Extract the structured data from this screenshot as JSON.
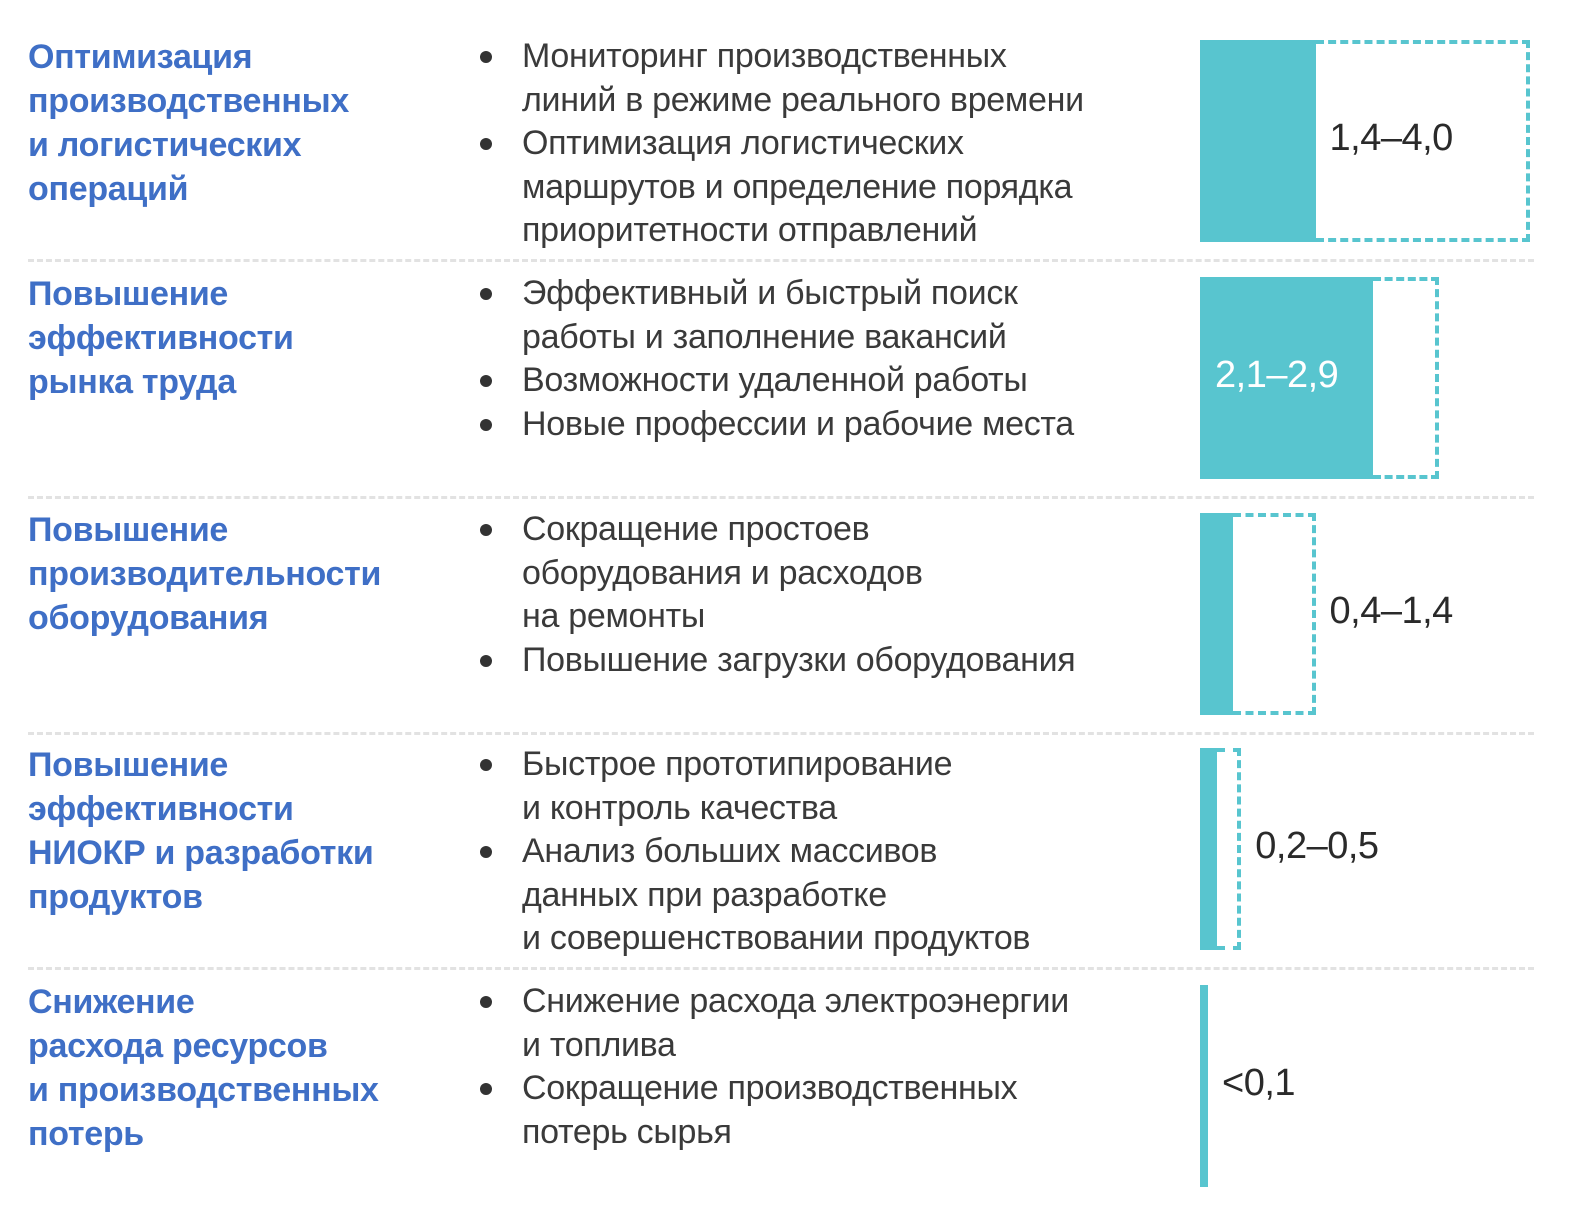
{
  "chart_data": {
    "type": "bar",
    "orientation": "horizontal-range",
    "bar_color": "#58c5cf",
    "title_color": "#3f6fc6",
    "categories": [
      {
        "title_lines": [
          "Оптимизация",
          "производственных",
          "и логистических",
          "операций"
        ],
        "bullets": [
          {
            "lines": [
              "Мониторинг производственных",
              "линий в режиме реального времени"
            ]
          },
          {
            "lines": [
              "Оптимизация логистических",
              "маршрутов и определение порядка",
              "приоритетности отправлений"
            ]
          }
        ],
        "low": 1.4,
        "high": 4.0,
        "label": "1,4–4,0"
      },
      {
        "title_lines": [
          "Повышение",
          "эффективности",
          "рынка труда"
        ],
        "bullets": [
          {
            "lines": [
              "Эффективный и быстрый поиск",
              "работы и заполнение вакансий"
            ]
          },
          {
            "lines": [
              "Возможности удаленной работы"
            ]
          },
          {
            "lines": [
              "Новые профессии и рабочие места"
            ]
          }
        ],
        "low": 2.1,
        "high": 2.9,
        "label": "2,1–2,9"
      },
      {
        "title_lines": [
          "Повышение",
          "производительности",
          "оборудования"
        ],
        "bullets": [
          {
            "lines": [
              "Сокращение простоев",
              "оборудования и расходов",
              "на ремонты"
            ]
          },
          {
            "lines": [
              "Повышение загрузки оборудования"
            ]
          }
        ],
        "low": 0.4,
        "high": 1.4,
        "label": "0,4–1,4"
      },
      {
        "title_lines": [
          "Повышение",
          "эффективности",
          "НИОКР и разработки",
          "продуктов"
        ],
        "bullets": [
          {
            "lines": [
              "Быстрое прототипирование",
              "и контроль качества"
            ]
          },
          {
            "lines": [
              "Анализ больших массивов",
              "данных при разработке",
              "и совершенствовании продуктов"
            ]
          }
        ],
        "low": 0.2,
        "high": 0.5,
        "label": "0,2–0,5"
      },
      {
        "title_lines": [
          "Снижение",
          "расхода ресурсов",
          "и производственных",
          "потерь"
        ],
        "bullets": [
          {
            "lines": [
              "Снижение расхода электроэнергии",
              "и топлива"
            ]
          },
          {
            "lines": [
              "Сокращение производственных",
              "потерь сырья"
            ]
          }
        ],
        "low": 0,
        "high": 0.1,
        "label": "<0,1"
      }
    ]
  }
}
